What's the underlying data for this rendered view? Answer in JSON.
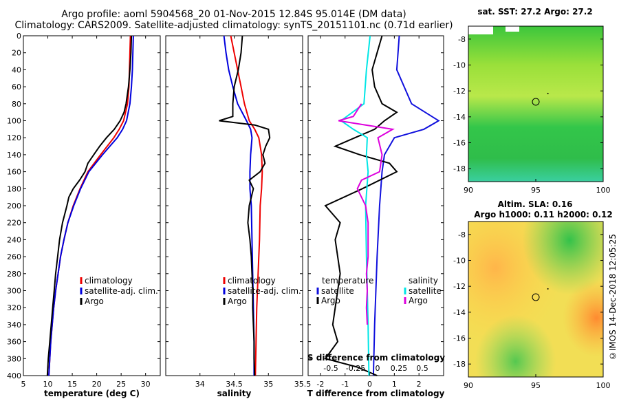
{
  "title_line1": "Argo profile: aoml 5904568_20 01-Nov-2015 12.84S 95.014E (DM data)",
  "title_line2": "Climatology: CARS2009. Satellite-adjusted climatology: synTS_20151101.nc (0.71d earlier)",
  "side_label": "©IMOS 14-Dec-2018 12:05:25",
  "colors": {
    "climatology": "#ee0000",
    "satellite": "#0000dd",
    "argo": "#000000",
    "sat_salinity": "#00e6e6",
    "sat_temp_diff": "#1010dd",
    "salinity_diff": "#dd00dd"
  },
  "chart_data": [
    {
      "type": "line",
      "name": "temperature-panel",
      "xlabel": "temperature (deg C)",
      "ylabel": "",
      "xlim": [
        5,
        33
      ],
      "ylim": [
        400,
        0
      ],
      "xticks": [
        5,
        10,
        15,
        20,
        25,
        30
      ],
      "yticks": [
        0,
        20,
        40,
        60,
        80,
        100,
        120,
        140,
        160,
        180,
        200,
        220,
        240,
        260,
        280,
        300,
        320,
        340,
        360,
        380,
        400
      ],
      "legend": [
        "climatology",
        "satellite-adj. clim.",
        "Argo"
      ],
      "series": [
        {
          "name": "climatology",
          "depth": [
            0,
            20,
            40,
            60,
            80,
            100,
            110,
            120,
            140,
            160,
            180,
            200,
            220,
            240,
            260,
            280,
            300,
            320,
            340,
            360,
            380,
            400
          ],
          "values": [
            26.9,
            26.8,
            26.7,
            26.6,
            26.3,
            25.5,
            24.6,
            23.5,
            20.8,
            18.2,
            16.6,
            15.2,
            14.1,
            13.3,
            12.6,
            12.1,
            11.6,
            11.2,
            10.9,
            10.6,
            10.4,
            10.2
          ]
        },
        {
          "name": "satellite-adj. clim.",
          "depth": [
            0,
            20,
            40,
            60,
            80,
            100,
            110,
            120,
            140,
            160,
            180,
            200,
            220,
            240,
            260,
            280,
            300,
            320,
            340,
            360,
            380,
            400
          ],
          "values": [
            27.5,
            27.4,
            27.3,
            27.1,
            26.8,
            26.1,
            25.3,
            24.2,
            21.2,
            18.4,
            16.7,
            15.3,
            14.1,
            13.3,
            12.6,
            12.1,
            11.6,
            11.2,
            10.9,
            10.6,
            10.4,
            10.2
          ]
        },
        {
          "name": "Argo",
          "depth": [
            0,
            20,
            40,
            60,
            80,
            90,
            100,
            110,
            120,
            130,
            140,
            150,
            160,
            170,
            180,
            190,
            200,
            220,
            240,
            260,
            280,
            300,
            320,
            340,
            360,
            380,
            400
          ],
          "values": [
            27.1,
            27.0,
            26.8,
            26.5,
            26.0,
            25.6,
            24.8,
            23.6,
            22.0,
            20.6,
            19.4,
            18.2,
            17.6,
            16.5,
            15.2,
            14.3,
            13.9,
            13.0,
            12.4,
            12.0,
            11.6,
            11.3,
            11.0,
            10.7,
            10.4,
            10.1,
            9.9
          ]
        }
      ]
    },
    {
      "type": "line",
      "name": "salinity-panel",
      "xlabel": "salinity",
      "ylabel": "",
      "xlim": [
        33.5,
        35.5
      ],
      "ylim": [
        400,
        0
      ],
      "xticks": [
        34,
        34.5,
        35,
        35.5
      ],
      "legend": [
        "climatology",
        "satellite-adj. clim.",
        "Argo"
      ],
      "series": [
        {
          "name": "climatology",
          "depth": [
            0,
            20,
            40,
            60,
            80,
            100,
            110,
            120,
            140,
            160,
            180,
            200,
            240,
            280,
            320,
            360,
            400
          ],
          "values": [
            34.45,
            34.5,
            34.55,
            34.6,
            34.65,
            34.72,
            34.8,
            34.86,
            34.9,
            34.91,
            34.9,
            34.88,
            34.87,
            34.85,
            34.83,
            34.82,
            34.81
          ]
        },
        {
          "name": "satellite-adj. clim.",
          "depth": [
            0,
            20,
            40,
            60,
            80,
            100,
            110,
            120,
            140,
            160,
            180,
            200,
            240,
            280,
            320,
            360,
            400
          ],
          "values": [
            34.35,
            34.38,
            34.42,
            34.48,
            34.55,
            34.68,
            34.74,
            34.76,
            34.74,
            34.73,
            34.73,
            34.75,
            34.76,
            34.77,
            34.78,
            34.79,
            34.79
          ]
        },
        {
          "name": "Argo",
          "depth": [
            0,
            20,
            40,
            60,
            80,
            95,
            100,
            105,
            110,
            120,
            130,
            140,
            150,
            160,
            170,
            180,
            200,
            220,
            240,
            260,
            280,
            300,
            320,
            340,
            360,
            380,
            400
          ],
          "values": [
            34.62,
            34.6,
            34.56,
            34.5,
            34.48,
            34.48,
            34.28,
            34.8,
            35.0,
            35.02,
            34.96,
            34.92,
            34.95,
            34.88,
            34.72,
            34.78,
            34.72,
            34.7,
            34.73,
            34.75,
            34.76,
            34.77,
            34.77,
            34.78,
            34.79,
            34.79,
            34.8
          ]
        }
      ]
    },
    {
      "type": "line",
      "name": "difference-panel",
      "xlabel": "T difference from climatology",
      "x2label": "S difference from climatology",
      "xlim": [
        -2.5,
        3
      ],
      "ylim": [
        400,
        0
      ],
      "xticks": [
        -2,
        -1,
        0,
        1,
        2
      ],
      "x2ticks": [
        -0.5,
        -0.25,
        0,
        0.25,
        0.5
      ],
      "legend_title_left": "temperature",
      "legend_title_right": "salinity",
      "legend": [
        "satellite",
        "Argo",
        "satellite",
        "Argo"
      ],
      "series": [
        {
          "name": "temperature satellite",
          "depth": [
            0,
            40,
            80,
            100,
            110,
            120,
            140,
            160,
            200,
            260,
            300,
            340,
            400
          ],
          "values": [
            1.2,
            1.1,
            1.7,
            2.8,
            2.2,
            1.0,
            0.6,
            0.5,
            0.4,
            0.3,
            0.25,
            0.2,
            0.15
          ]
        },
        {
          "name": "temperature Argo",
          "depth": [
            0,
            20,
            40,
            60,
            80,
            90,
            100,
            110,
            120,
            130,
            140,
            150,
            160,
            180,
            200,
            220,
            240,
            260,
            280,
            300,
            320,
            340,
            360,
            380,
            390,
            400
          ],
          "values": [
            0.5,
            0.3,
            0.1,
            0.2,
            0.5,
            1.1,
            0.6,
            0.2,
            -0.6,
            -1.4,
            -0.4,
            0.8,
            1.1,
            -0.3,
            -1.8,
            -1.2,
            -1.4,
            -1.3,
            -1.2,
            -1.3,
            -1.4,
            -1.5,
            -1.3,
            -1.8,
            -0.5,
            0.3
          ]
        },
        {
          "name": "salinity satellite",
          "depth": [
            0,
            40,
            80,
            100,
            110,
            120,
            140,
            160,
            200,
            260,
            300,
            340,
            400
          ],
          "values": [
            0.005,
            -0.04,
            -0.07,
            -0.35,
            -0.2,
            -0.03,
            -0.04,
            -0.02,
            -0.05,
            -0.04,
            -0.03,
            -0.02,
            -0.01
          ]
        },
        {
          "name": "salinity Argo",
          "depth": [
            80,
            95,
            100,
            105,
            110,
            120,
            140,
            160,
            170,
            180,
            200,
            220,
            240,
            260,
            280,
            300,
            320,
            340
          ],
          "values": [
            -0.1,
            -0.2,
            -0.38,
            -0.05,
            0.28,
            0.1,
            0.15,
            0.12,
            -0.1,
            -0.15,
            -0.05,
            -0.02,
            -0.02,
            -0.02,
            -0.04,
            -0.03,
            -0.04,
            -0.03
          ]
        }
      ]
    },
    {
      "type": "heatmap",
      "name": "sst-map",
      "title": "sat. SST: 27.2 Argo: 27.2",
      "xlim": [
        90,
        100
      ],
      "ylim": [
        -19,
        -7
      ],
      "xticks": [
        90,
        95,
        100
      ],
      "yticks": [
        -8,
        -10,
        -12,
        -14,
        -16,
        -18
      ],
      "marker": {
        "lon": 95.0,
        "lat": -12.84
      }
    },
    {
      "type": "heatmap",
      "name": "sla-map",
      "title": "Altim. SLA: 0.16",
      "subtitle": "Argo h1000: 0.11 h2000: 0.12",
      "xlim": [
        90,
        100
      ],
      "ylim": [
        -19,
        -7
      ],
      "xticks": [
        90,
        95,
        100
      ],
      "yticks": [
        -8,
        -10,
        -12,
        -14,
        -16,
        -18
      ],
      "marker": {
        "lon": 95.0,
        "lat": -12.84
      }
    }
  ]
}
